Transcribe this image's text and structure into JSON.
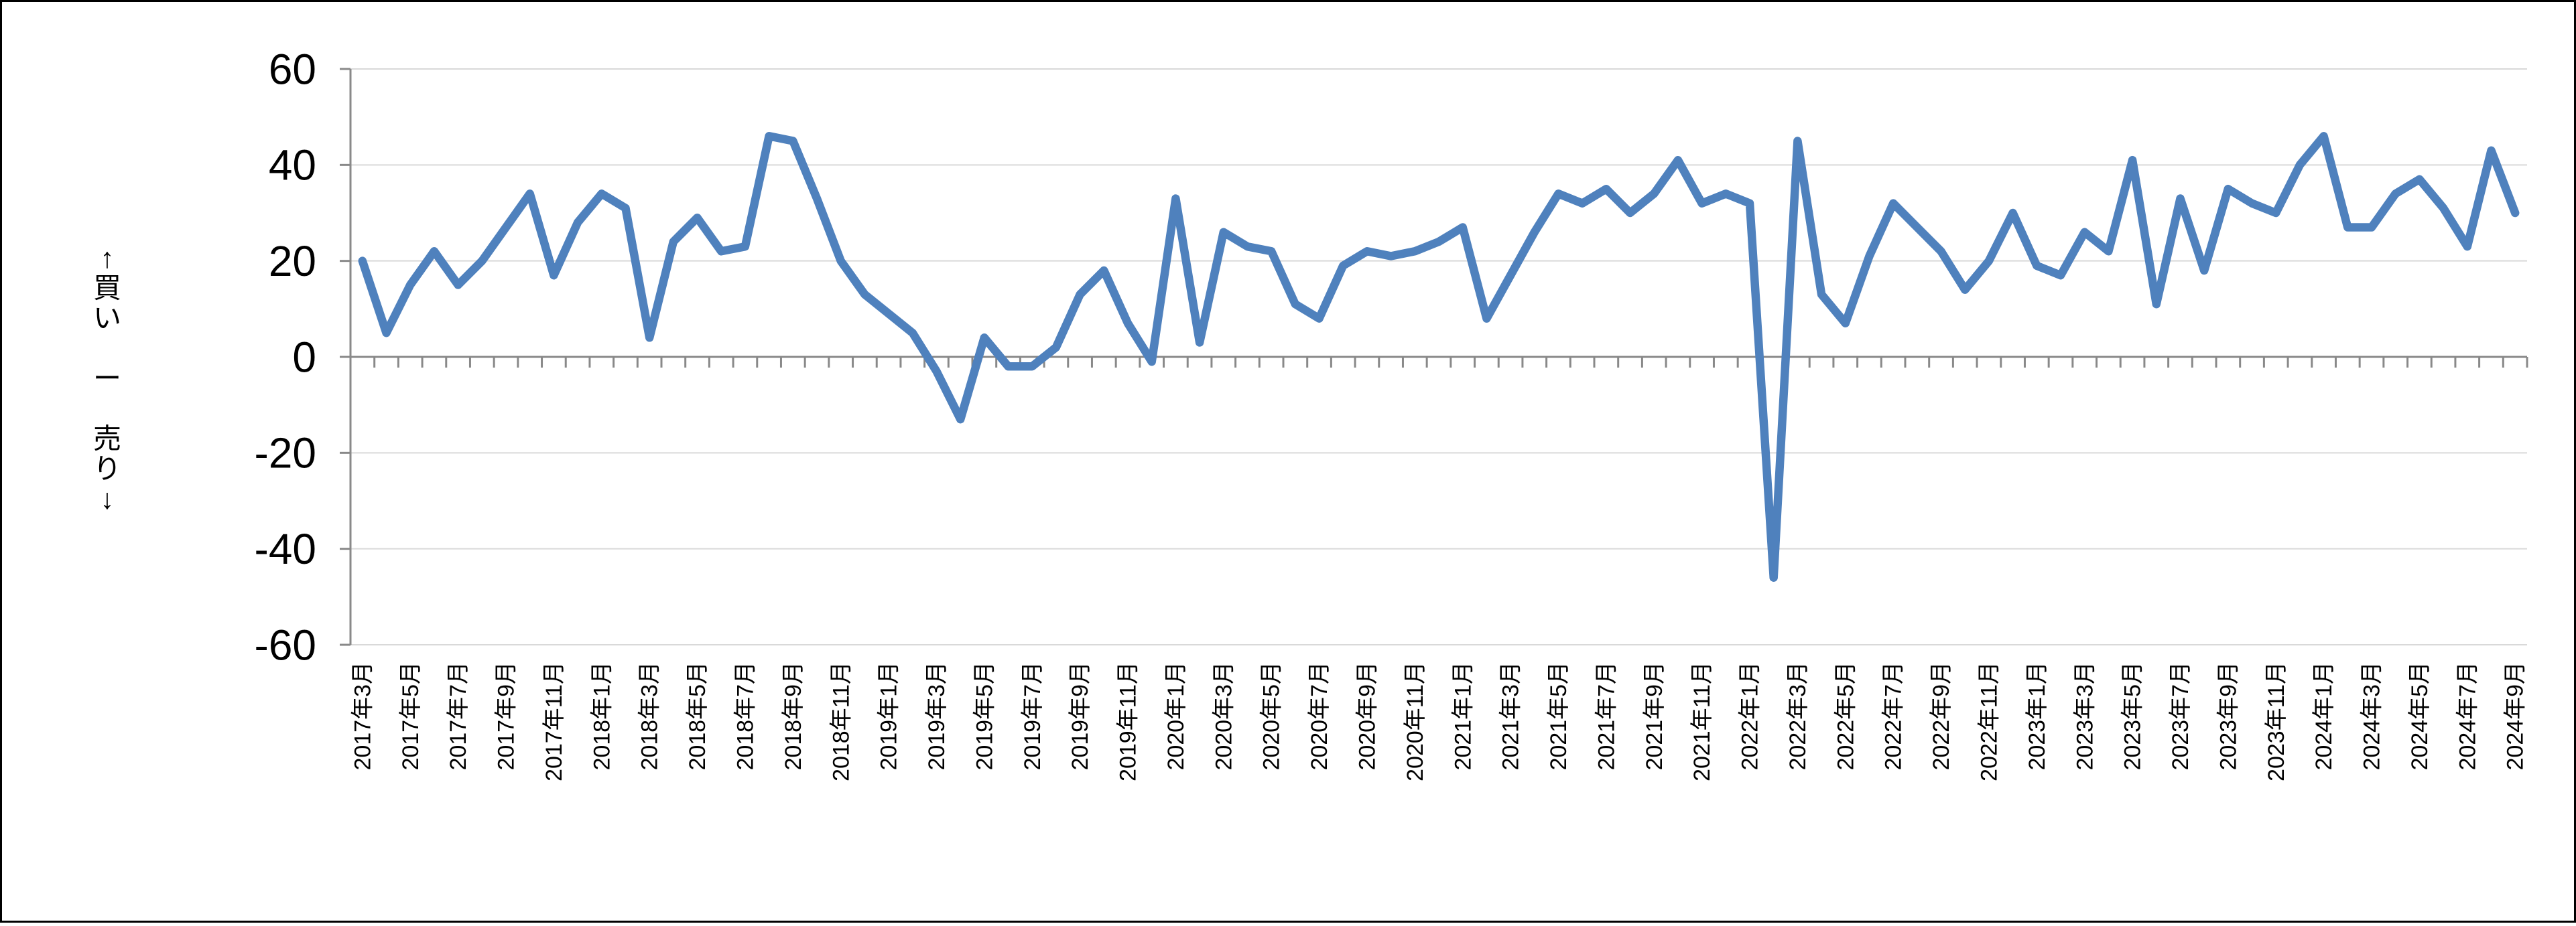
{
  "chart_data": {
    "type": "line",
    "title": "",
    "ylabel": "↑買い　ー　売り↓",
    "ylabel_chars": [
      "↑",
      "買",
      "い",
      "",
      "ー",
      "",
      "売",
      "り",
      "↓"
    ],
    "xlabel": "",
    "ylim": [
      -60,
      60
    ],
    "yticks": [
      60,
      40,
      20,
      0,
      -20,
      -40,
      -60
    ],
    "xtick_label_step": 2,
    "grid": true,
    "legend": "none",
    "colors": {
      "series": "#4F81BD",
      "gridline": "#D9D9D9",
      "axis": "#898989",
      "text": "#000000",
      "background": "#FFFFFF",
      "page_border": "#000000"
    },
    "x": [
      "2017年3月",
      "2017年4月",
      "2017年5月",
      "2017年6月",
      "2017年7月",
      "2017年8月",
      "2017年9月",
      "2017年10月",
      "2017年11月",
      "2017年12月",
      "2018年1月",
      "2018年2月",
      "2018年3月",
      "2018年4月",
      "2018年5月",
      "2018年6月",
      "2018年7月",
      "2018年8月",
      "2018年9月",
      "2018年10月",
      "2018年11月",
      "2018年12月",
      "2019年1月",
      "2019年2月",
      "2019年3月",
      "2019年4月",
      "2019年5月",
      "2019年6月",
      "2019年7月",
      "2019年8月",
      "2019年9月",
      "2019年10月",
      "2019年11月",
      "2019年12月",
      "2020年1月",
      "2020年2月",
      "2020年3月",
      "2020年4月",
      "2020年5月",
      "2020年6月",
      "2020年7月",
      "2020年8月",
      "2020年9月",
      "2020年10月",
      "2020年11月",
      "2020年12月",
      "2021年1月",
      "2021年2月",
      "2021年3月",
      "2021年4月",
      "2021年5月",
      "2021年6月",
      "2021年7月",
      "2021年8月",
      "2021年9月",
      "2021年10月",
      "2021年11月",
      "2021年12月",
      "2022年1月",
      "2022年2月",
      "2022年3月",
      "2022年4月",
      "2022年5月",
      "2022年6月",
      "2022年7月",
      "2022年8月",
      "2022年9月",
      "2022年10月",
      "2022年11月",
      "2022年12月",
      "2023年1月",
      "2023年2月",
      "2023年3月",
      "2023年4月",
      "2023年5月",
      "2023年6月",
      "2023年7月",
      "2023年8月",
      "2023年9月",
      "2023年10月",
      "2023年11月",
      "2023年12月",
      "2024年1月",
      "2024年2月",
      "2024年3月",
      "2024年4月",
      "2024年5月",
      "2024年6月",
      "2024年7月",
      "2024年8月",
      "2024年9月"
    ],
    "values": [
      20,
      5,
      15,
      22,
      15,
      20,
      27,
      34,
      17,
      28,
      34,
      31,
      4,
      24,
      29,
      22,
      23,
      46,
      45,
      33,
      20,
      13,
      9,
      5,
      -3,
      -13,
      4,
      -2,
      -2,
      2,
      13,
      18,
      7,
      -1,
      33,
      3,
      26,
      23,
      22,
      11,
      8,
      19,
      22,
      21,
      22,
      24,
      27,
      8,
      17,
      26,
      34,
      32,
      35,
      30,
      34,
      41,
      32,
      34,
      32,
      -46,
      45,
      13,
      7,
      21,
      32,
      27,
      22,
      14,
      20,
      30,
      19,
      17,
      26,
      22,
      41,
      11,
      33,
      18,
      35,
      32,
      30,
      40,
      46,
      27,
      27,
      34,
      37,
      31,
      23,
      43,
      30
    ]
  }
}
